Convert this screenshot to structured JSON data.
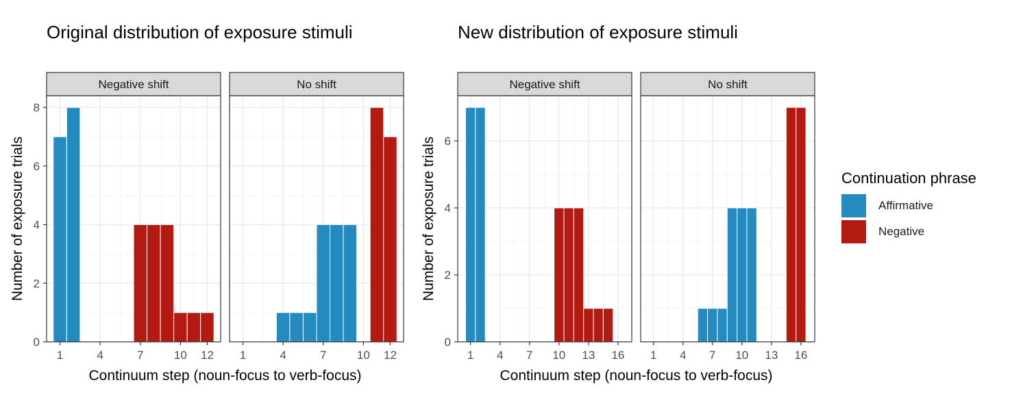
{
  "chart_data": [
    {
      "type": "bar",
      "title": "Original distribution of exposure stimuli",
      "xlabel": "Continuum step (noun-focus to verb-focus)",
      "ylabel": "Number of exposure trials",
      "xlim": [
        0,
        13
      ],
      "x_ticks": [
        1,
        4,
        7,
        10,
        12
      ],
      "ylim": [
        0,
        8.4
      ],
      "y_ticks": [
        0,
        2,
        4,
        6,
        8
      ],
      "grid": true,
      "facets": [
        {
          "label": "Negative shift",
          "bars": [
            {
              "x": 1,
              "y": 7,
              "series": "Affirmative"
            },
            {
              "x": 2,
              "y": 8,
              "series": "Affirmative"
            },
            {
              "x": 7,
              "y": 4,
              "series": "Negative"
            },
            {
              "x": 8,
              "y": 4,
              "series": "Negative"
            },
            {
              "x": 9,
              "y": 4,
              "series": "Negative"
            },
            {
              "x": 10,
              "y": 1,
              "series": "Negative"
            },
            {
              "x": 11,
              "y": 1,
              "series": "Negative"
            },
            {
              "x": 12,
              "y": 1,
              "series": "Negative"
            }
          ]
        },
        {
          "label": "No shift",
          "bars": [
            {
              "x": 4,
              "y": 1,
              "series": "Affirmative"
            },
            {
              "x": 5,
              "y": 1,
              "series": "Affirmative"
            },
            {
              "x": 6,
              "y": 1,
              "series": "Affirmative"
            },
            {
              "x": 7,
              "y": 4,
              "series": "Affirmative"
            },
            {
              "x": 8,
              "y": 4,
              "series": "Affirmative"
            },
            {
              "x": 9,
              "y": 4,
              "series": "Affirmative"
            },
            {
              "x": 11,
              "y": 8,
              "series": "Negative"
            },
            {
              "x": 12,
              "y": 7,
              "series": "Negative"
            }
          ]
        }
      ]
    },
    {
      "type": "bar",
      "title": "New distribution of exposure stimuli",
      "xlabel": "Continuum step (noun-focus to verb-focus)",
      "ylabel": "Number of exposure trials",
      "xlim": [
        -0.3,
        17.4
      ],
      "x_ticks": [
        1,
        4,
        7,
        10,
        13,
        16
      ],
      "ylim": [
        0,
        7.35
      ],
      "y_ticks": [
        0,
        2,
        4,
        6
      ],
      "grid": true,
      "facets": [
        {
          "label": "Negative shift",
          "bars": [
            {
              "x": 1,
              "y": 7,
              "series": "Affirmative"
            },
            {
              "x": 2,
              "y": 7,
              "series": "Affirmative"
            },
            {
              "x": 10,
              "y": 4,
              "series": "Negative"
            },
            {
              "x": 11,
              "y": 4,
              "series": "Negative"
            },
            {
              "x": 12,
              "y": 4,
              "series": "Negative"
            },
            {
              "x": 13,
              "y": 1,
              "series": "Negative"
            },
            {
              "x": 14,
              "y": 1,
              "series": "Negative"
            },
            {
              "x": 15,
              "y": 1,
              "series": "Negative"
            }
          ]
        },
        {
          "label": "No shift",
          "bars": [
            {
              "x": 6,
              "y": 1,
              "series": "Affirmative"
            },
            {
              "x": 7,
              "y": 1,
              "series": "Affirmative"
            },
            {
              "x": 8,
              "y": 1,
              "series": "Affirmative"
            },
            {
              "x": 9,
              "y": 4,
              "series": "Affirmative"
            },
            {
              "x": 10,
              "y": 4,
              "series": "Affirmative"
            },
            {
              "x": 11,
              "y": 4,
              "series": "Affirmative"
            },
            {
              "x": 15,
              "y": 7,
              "series": "Negative"
            },
            {
              "x": 16,
              "y": 7,
              "series": "Negative"
            }
          ]
        }
      ]
    }
  ],
  "legend": {
    "title": "Continuation phrase",
    "position": "right",
    "items": [
      {
        "label": "Affirmative",
        "color": "#238BBF"
      },
      {
        "label": "Negative",
        "color": "#B31A12"
      }
    ]
  },
  "colors": {
    "Affirmative": "#238BBF",
    "Negative": "#B31A12",
    "strip_fill": "#D9D9D9",
    "panel_border": "#333333",
    "grid_major": "#EBEBEB",
    "grid_minor": "#F5F5F5"
  }
}
